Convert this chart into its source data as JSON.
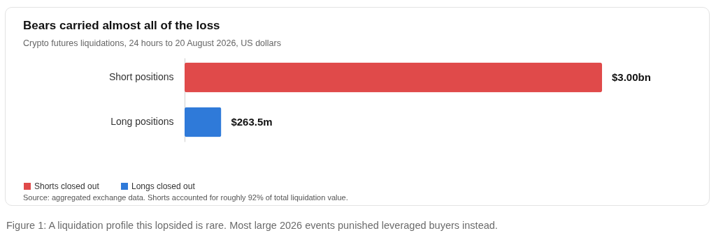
{
  "chart_data": {
    "type": "bar",
    "orientation": "horizontal",
    "title": "Bears carried almost all of the loss",
    "subtitle": "Crypto futures liquidations, 24 hours to 20 August 2026, US dollars",
    "categories": [
      "Short positions",
      "Long positions"
    ],
    "series": [
      {
        "name": "Shorts closed out",
        "color": "#e04a4a",
        "values": [
          3000000000,
          null
        ],
        "value_labels": [
          "$3.00bn",
          null
        ]
      },
      {
        "name": "Longs closed out",
        "color": "#2f7ad9",
        "values": [
          null,
          263500000
        ],
        "value_labels": [
          null,
          "$263.5m"
        ]
      }
    ],
    "legend": "bottom",
    "grid": false,
    "annotations": [
      "Source: aggregated exchange data. Shorts accounted for roughly 92% of total liquidation value.",
      "Figure 1: A liquidation profile this lopsided is rare. Most large 2026 events punished leveraged buyers instead."
    ]
  }
}
